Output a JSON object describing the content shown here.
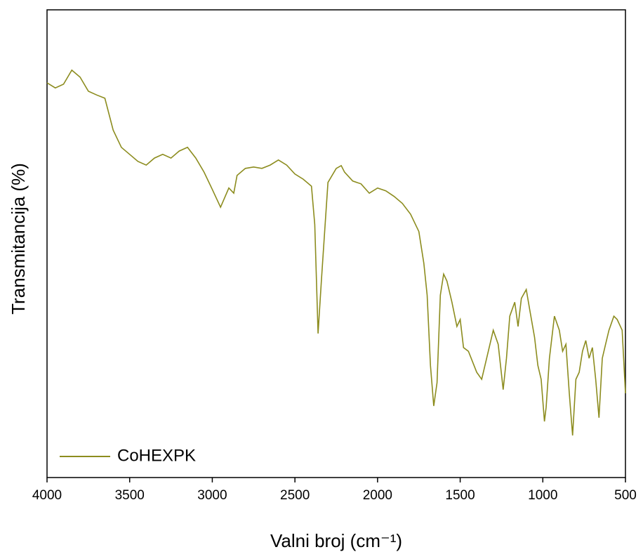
{
  "chart_data": {
    "type": "line",
    "xlabel": "Valni broj (cm⁻¹)",
    "ylabel": "Transmitancija (%)",
    "xlim": [
      4000,
      500
    ],
    "xticks": [
      4000,
      3500,
      3000,
      2500,
      2000,
      1500,
      1000,
      500
    ],
    "ylim": [
      0,
      100
    ],
    "legend": "lower left",
    "x": [
      4000,
      3950,
      3900,
      3850,
      3800,
      3750,
      3700,
      3650,
      3600,
      3550,
      3500,
      3450,
      3400,
      3350,
      3300,
      3250,
      3200,
      3150,
      3100,
      3050,
      3000,
      2950,
      2900,
      2870,
      2850,
      2800,
      2750,
      2700,
      2650,
      2600,
      2550,
      2500,
      2450,
      2400,
      2380,
      2360,
      2340,
      2320,
      2300,
      2250,
      2220,
      2200,
      2150,
      2100,
      2050,
      2000,
      1950,
      1900,
      1850,
      1800,
      1750,
      1720,
      1700,
      1680,
      1660,
      1640,
      1620,
      1600,
      1580,
      1550,
      1520,
      1500,
      1480,
      1450,
      1400,
      1370,
      1350,
      1300,
      1270,
      1240,
      1220,
      1200,
      1170,
      1150,
      1130,
      1100,
      1080,
      1050,
      1030,
      1010,
      990,
      980,
      960,
      930,
      900,
      880,
      860,
      840,
      820,
      800,
      780,
      760,
      740,
      720,
      700,
      680,
      660,
      640,
      620,
      600,
      570,
      550,
      520,
      500
    ],
    "series": [
      {
        "name": "CoHEXPK",
        "color": "#8c8c1e",
        "values": [
          84.4,
          83.3,
          84.1,
          87.1,
          85.6,
          82.6,
          81.8,
          81.1,
          74.3,
          70.6,
          69.1,
          67.6,
          66.8,
          68.3,
          69.1,
          68.3,
          69.8,
          70.6,
          68.3,
          65.3,
          61.6,
          57.8,
          61.9,
          60.8,
          64.6,
          66.1,
          66.4,
          66.1,
          66.8,
          67.9,
          66.8,
          64.9,
          63.8,
          62.3,
          54.1,
          30.8,
          42.0,
          52.6,
          63.1,
          66.1,
          66.7,
          65.3,
          63.4,
          62.8,
          60.8,
          61.9,
          61.3,
          60.1,
          58.6,
          56.3,
          52.6,
          45.8,
          39.0,
          24.0,
          15.3,
          20.3,
          39.0,
          43.5,
          42.0,
          37.5,
          32.3,
          33.8,
          27.8,
          27.0,
          22.5,
          21.0,
          24.0,
          31.5,
          28.5,
          18.8,
          25.5,
          34.5,
          37.5,
          32.3,
          38.3,
          40.2,
          36.0,
          30.0,
          24.0,
          21.0,
          12.0,
          15.0,
          25.5,
          34.5,
          31.5,
          27.0,
          28.5,
          18.0,
          9.0,
          21.0,
          22.5,
          27.0,
          29.3,
          25.5,
          27.8,
          21.0,
          12.8,
          25.5,
          28.5,
          31.5,
          34.5,
          33.8,
          31.5,
          18.0
        ]
      }
    ]
  }
}
